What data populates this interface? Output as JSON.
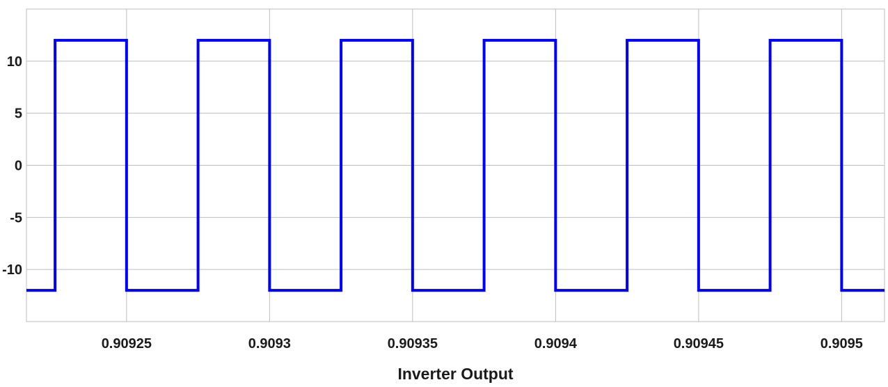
{
  "chart_data": {
    "type": "line",
    "title": "",
    "xlabel": "Inverter Output",
    "ylabel": "",
    "xlim": [
      0.909215,
      0.909515
    ],
    "ylim": [
      -15,
      15
    ],
    "grid": true,
    "x_ticks": [
      0.90925,
      0.9093,
      0.90935,
      0.9094,
      0.90945,
      0.9095
    ],
    "x_tick_labels": [
      "0.90925",
      "0.9093",
      "0.90935",
      "0.9094",
      "0.90945",
      "0.9095"
    ],
    "y_ticks": [
      -10,
      -5,
      0,
      5,
      10
    ],
    "y_tick_labels": [
      "-10",
      "-5",
      "0",
      "5",
      "10"
    ],
    "series": [
      {
        "color": "#0000ff",
        "style": "step",
        "x": [
          0.909215,
          0.909225,
          0.909225,
          0.90925,
          0.90925,
          0.909275,
          0.909275,
          0.9093,
          0.9093,
          0.909325,
          0.909325,
          0.90935,
          0.90935,
          0.909375,
          0.909375,
          0.9094,
          0.9094,
          0.909425,
          0.909425,
          0.90945,
          0.90945,
          0.909475,
          0.909475,
          0.9095,
          0.9095,
          0.909515
        ],
        "y": [
          -12,
          -12,
          12,
          12,
          -12,
          -12,
          12,
          12,
          -12,
          -12,
          12,
          12,
          -12,
          -12,
          12,
          12,
          -12,
          -12,
          12,
          12,
          -12,
          -12,
          12,
          12,
          -12,
          -12
        ]
      }
    ]
  }
}
